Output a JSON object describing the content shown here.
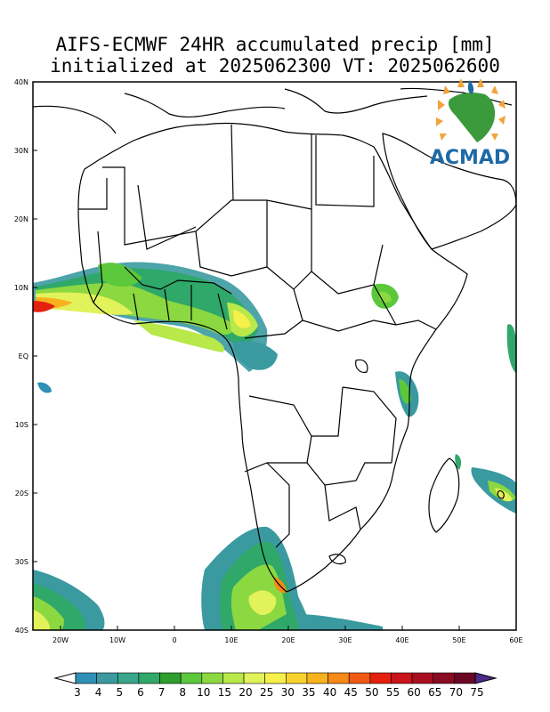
{
  "title_line1": "AIFS-ECMWF 24HR accumulated precip [mm]",
  "title_line2": "initialized at 2025062300 VT: 2025062600",
  "logo": {
    "text": "ACMAD",
    "icon": "africa-sun-logo",
    "accent": "#1f6aa6",
    "ray_color": "#f2a33a",
    "africa_color": "#3b9a3b"
  },
  "lat_labels": [
    "40N",
    "30N",
    "20N",
    "10N",
    "EQ",
    "10S",
    "20S",
    "30S",
    "40S"
  ],
  "lon_labels": [
    "20W",
    "10W",
    "0",
    "10E",
    "20E",
    "30E",
    "40E",
    "50E",
    "60E"
  ],
  "colorbar": {
    "values": [
      "3",
      "4",
      "5",
      "6",
      "7",
      "8",
      "10",
      "15",
      "20",
      "25",
      "30",
      "35",
      "40",
      "45",
      "50",
      "55",
      "60",
      "65",
      "70",
      "75"
    ],
    "colors": [
      "#2f8fb5",
      "#3a9aa0",
      "#3aa58a",
      "#2fa86a",
      "#2e9e2e",
      "#5cc83b",
      "#8cd840",
      "#b8e84a",
      "#e2f25a",
      "#f6f04a",
      "#f7d22e",
      "#f7b21e",
      "#f58a18",
      "#f05a12",
      "#e4200e",
      "#c8141a",
      "#a81020",
      "#8a0c22",
      "#6a0824",
      "#4b2a8a"
    ]
  },
  "map_extent": {
    "lon": [
      -25,
      60
    ],
    "lat": [
      -40,
      40
    ]
  }
}
